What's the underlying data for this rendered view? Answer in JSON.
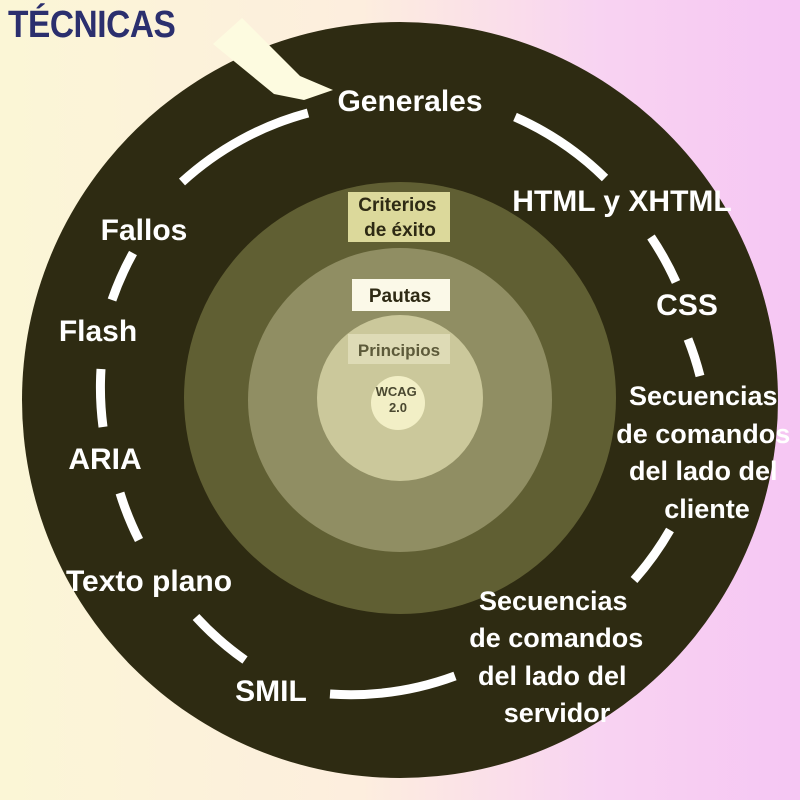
{
  "title": "TÉCNICAS",
  "colors": {
    "outer_disk": "#2e2b12",
    "ring_criteria": "#605f33",
    "ring_pautas": "#908e63",
    "ring_principios": "#cbc89b",
    "core": "#f2efc6",
    "track": "#ffffff",
    "title": "#2b2f6e",
    "label_box_criteria": "#dcd99b",
    "label_box_pautas": "#fbf9e8",
    "label_box_principios": "#dedbb6"
  },
  "techniques": [
    {
      "id": "generales",
      "lines": [
        "Generales"
      ]
    },
    {
      "id": "html",
      "lines": [
        "HTML y XHTML"
      ]
    },
    {
      "id": "css",
      "lines": [
        "CSS"
      ]
    },
    {
      "id": "client",
      "lines": [
        "Secuencias",
        "de comandos",
        "del lado del",
        "cliente"
      ]
    },
    {
      "id": "server",
      "lines": [
        "Secuencias",
        "de comandos",
        "del lado del",
        "servidor"
      ]
    },
    {
      "id": "smil",
      "lines": [
        "SMIL"
      ]
    },
    {
      "id": "texto",
      "lines": [
        "Texto plano"
      ]
    },
    {
      "id": "aria",
      "lines": [
        "ARIA"
      ]
    },
    {
      "id": "flash",
      "lines": [
        "Flash"
      ]
    },
    {
      "id": "fallos",
      "lines": [
        "Fallos"
      ]
    }
  ],
  "layers": {
    "criteria": {
      "lines": [
        "Criterios",
        "de éxito"
      ]
    },
    "pautas": {
      "label": "Pautas"
    },
    "principios": {
      "label": "Principios"
    },
    "core": {
      "lines": [
        "WCAG",
        "2.0"
      ]
    }
  }
}
